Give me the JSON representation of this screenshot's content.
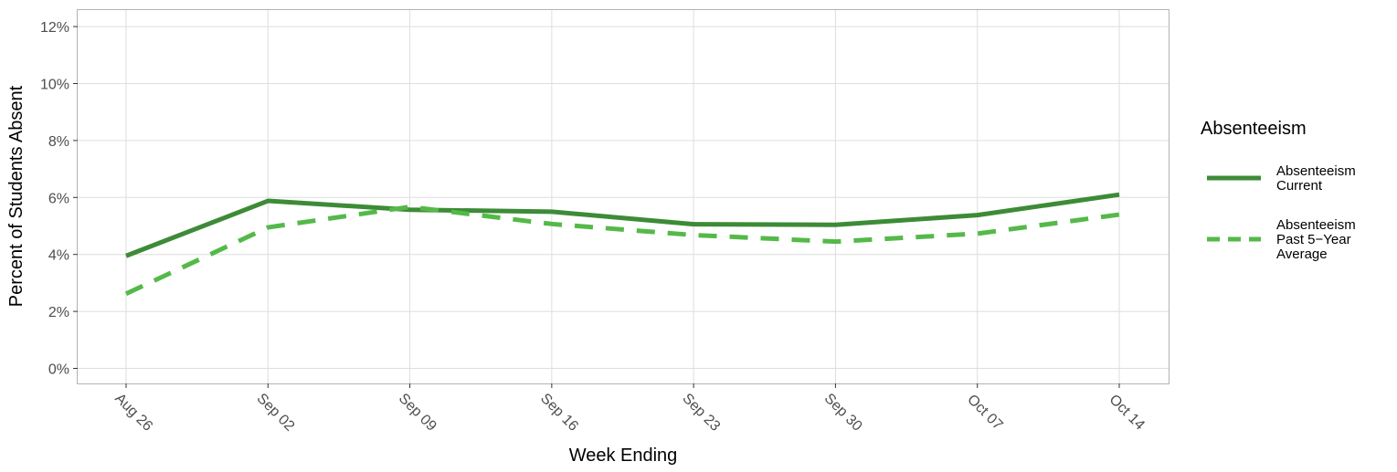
{
  "chart_data": {
    "type": "line",
    "title": "",
    "xlabel": "Week Ending",
    "ylabel": "Percent of Students Absent",
    "categories": [
      "Aug 26",
      "Sep 02",
      "Sep 09",
      "Sep 16",
      "Sep 23",
      "Sep 30",
      "Oct 07",
      "Oct 14"
    ],
    "yticks": [
      "0%",
      "2%",
      "4%",
      "6%",
      "8%",
      "10%",
      "12%"
    ],
    "ylim": [
      0,
      12
    ],
    "grid": true,
    "legend": {
      "title": "Absenteeism",
      "position": "right"
    },
    "series": [
      {
        "name": "Absenteeism Current",
        "legend_lines": [
          "Absenteeism",
          "Current"
        ],
        "values": [
          3.95,
          5.88,
          5.57,
          5.5,
          5.06,
          5.04,
          5.38,
          6.1
        ],
        "color": "#3d8b37",
        "style": "solid"
      },
      {
        "name": "Absenteeism Past 5-Year Average",
        "legend_lines": [
          "Absenteeism",
          "Past 5−Year",
          "Average"
        ],
        "values": [
          2.62,
          4.95,
          5.67,
          5.07,
          4.68,
          4.45,
          4.73,
          5.4
        ],
        "color": "#54b948",
        "style": "dashed"
      }
    ]
  }
}
